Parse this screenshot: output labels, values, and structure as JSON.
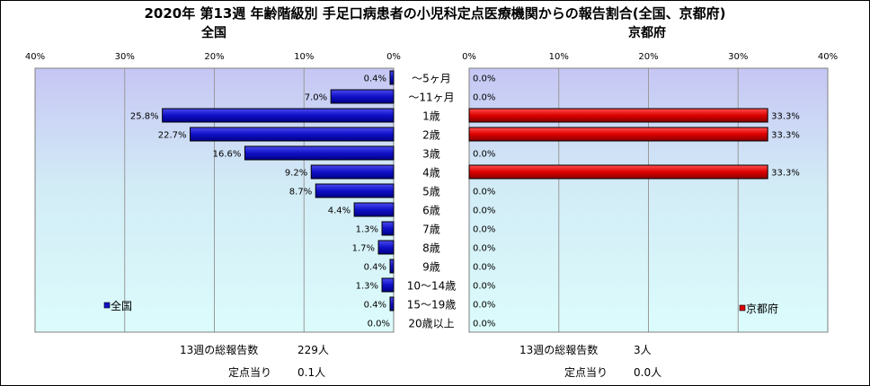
{
  "title": "2020年 第13週 年齢階級別 手足口病患者の小児科定点医療機関からの報告割合(全国、京都府)",
  "chart_data": [
    {
      "type": "bar",
      "orientation": "horizontal",
      "subtitle": "全国",
      "xlim": [
        0,
        40
      ],
      "ticks": [
        "40%",
        "30%",
        "20%",
        "10%",
        "0%"
      ],
      "categories": [
        "～5ヶ月",
        "～11ヶ月",
        "1歳",
        "2歳",
        "3歳",
        "4歳",
        "5歳",
        "6歳",
        "7歳",
        "8歳",
        "9歳",
        "10～14歳",
        "15～19歳",
        "20歳以上"
      ],
      "values": [
        0.4,
        7.0,
        25.8,
        22.7,
        16.6,
        9.2,
        8.7,
        4.4,
        1.3,
        1.7,
        0.4,
        1.3,
        0.4,
        0.0
      ],
      "labels": [
        "0.4%",
        "7.0%",
        "25.8%",
        "22.7%",
        "16.6%",
        "9.2%",
        "8.7%",
        "4.4%",
        "1.3%",
        "1.7%",
        "0.4%",
        "1.3%",
        "0.4%",
        "0.0%"
      ],
      "series": [
        {
          "name": "全国",
          "color": "#1010c8"
        }
      ],
      "legend": "bottom-left"
    },
    {
      "type": "bar",
      "orientation": "horizontal",
      "subtitle": "京都府",
      "xlim": [
        0,
        40
      ],
      "ticks": [
        "0%",
        "10%",
        "20%",
        "30%",
        "40%"
      ],
      "categories": [
        "～5ヶ月",
        "～11ヶ月",
        "1歳",
        "2歳",
        "3歳",
        "4歳",
        "5歳",
        "6歳",
        "7歳",
        "8歳",
        "9歳",
        "10～14歳",
        "15～19歳",
        "20歳以上"
      ],
      "values": [
        0.0,
        0.0,
        33.3,
        33.3,
        0.0,
        33.3,
        0.0,
        0.0,
        0.0,
        0.0,
        0.0,
        0.0,
        0.0,
        0.0
      ],
      "labels": [
        "0.0%",
        "0.0%",
        "33.3%",
        "33.3%",
        "0.0%",
        "33.3%",
        "0.0%",
        "0.0%",
        "0.0%",
        "0.0%",
        "0.0%",
        "0.0%",
        "0.0%",
        "0.0%"
      ],
      "series": [
        {
          "name": "京都府",
          "color": "#dd0000"
        }
      ],
      "legend": "bottom-right"
    }
  ],
  "footer": {
    "national_total_label": "13週の総報告数",
    "national_total_value": "229人",
    "national_per_label": "定点当り",
    "national_per_value": "0.1人",
    "kyoto_total_label": "13週の総報告数",
    "kyoto_total_value": "3人",
    "kyoto_per_label": "定点当り",
    "kyoto_per_value": "0.0人"
  }
}
